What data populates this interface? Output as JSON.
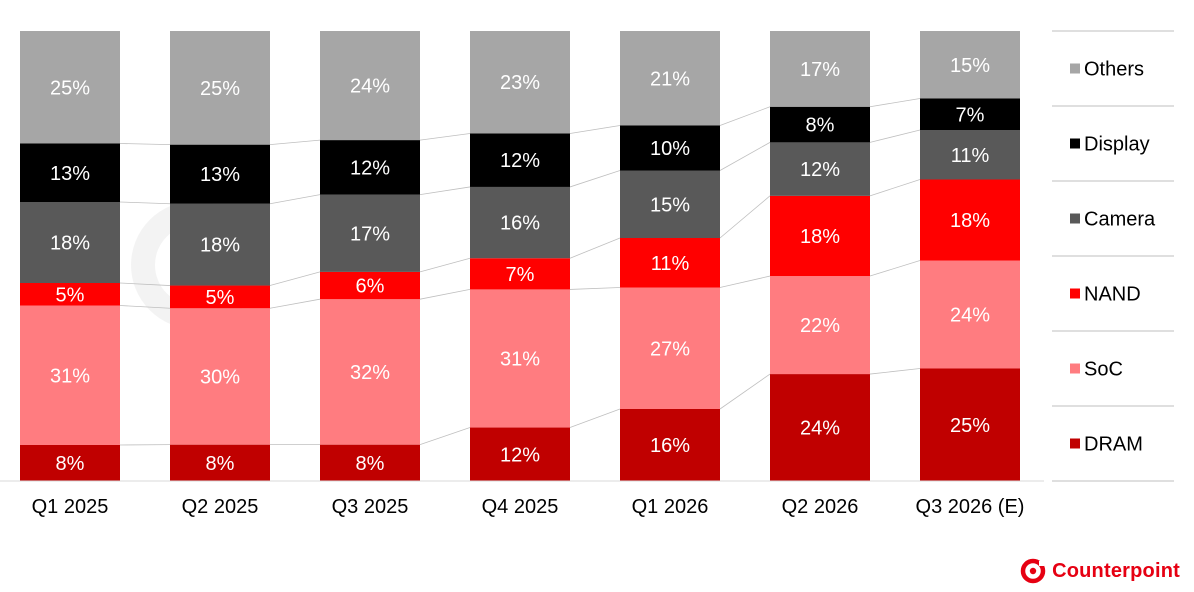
{
  "brand": {
    "name": "Counterpoint"
  },
  "chart_data": {
    "type": "bar",
    "stacked": true,
    "normalized_percent": true,
    "categories": [
      "Q1 2025",
      "Q2 2025",
      "Q3 2025",
      "Q4 2025",
      "Q1 2026",
      "Q2 2026",
      "Q3 2026 (E)"
    ],
    "series": [
      {
        "name": "DRAM",
        "color": "#c00000",
        "values": [
          8,
          8,
          8,
          12,
          16,
          24,
          25
        ]
      },
      {
        "name": "SoC",
        "color": "#ff7c80",
        "values": [
          31,
          30,
          32,
          31,
          27,
          22,
          24
        ]
      },
      {
        "name": "NAND",
        "color": "#ff0000",
        "values": [
          5,
          5,
          6,
          7,
          11,
          18,
          18
        ]
      },
      {
        "name": "Camera",
        "color": "#595959",
        "values": [
          18,
          18,
          17,
          16,
          15,
          12,
          11
        ]
      },
      {
        "name": "Display",
        "color": "#000000",
        "values": [
          13,
          13,
          12,
          12,
          10,
          8,
          7
        ]
      },
      {
        "name": "Others",
        "color": "#a6a6a6",
        "values": [
          25,
          25,
          24,
          23,
          21,
          17,
          15
        ]
      }
    ],
    "value_suffix": "%",
    "ylim": [
      0,
      100
    ],
    "grid": false,
    "connector_lines": true,
    "legend_position": "right",
    "legend_order": [
      "Others",
      "Display",
      "Camera",
      "NAND",
      "SoC",
      "DRAM"
    ]
  }
}
